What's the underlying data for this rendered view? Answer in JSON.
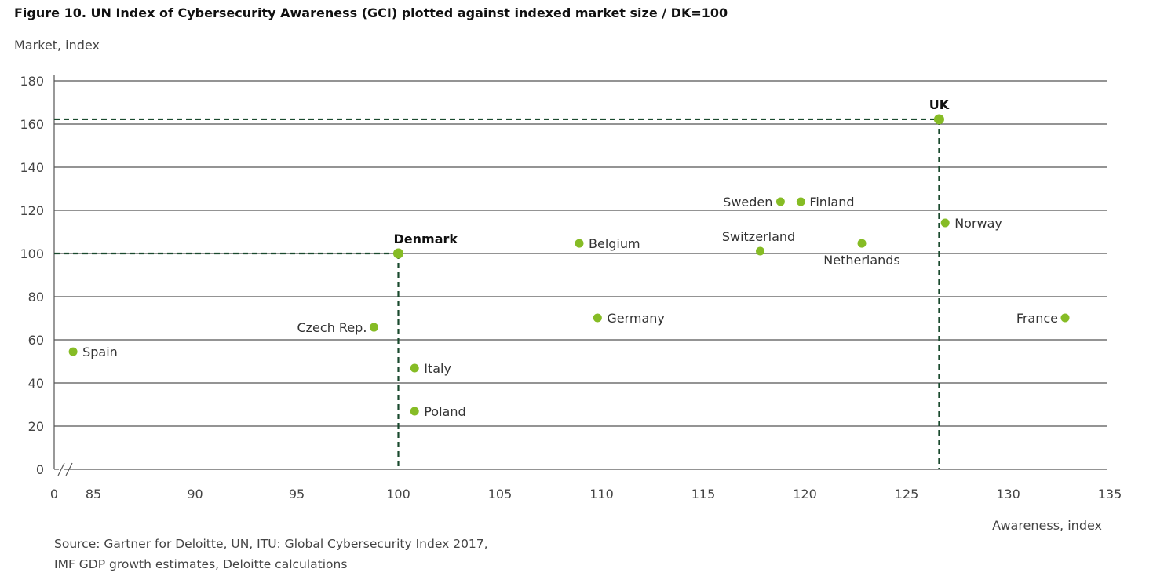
{
  "title": "Figure 10. UN Index of Cybersecurity Awareness (GCI) plotted against indexed market size / DK=100",
  "source_lines": [
    "Source: Gartner for Deloitte, UN, ITU: Global Cybersecurity Index 2017,",
    "IMF GDP growth estimates, Deloitte calculations"
  ],
  "colors": {
    "point": "#86bc25",
    "reference_line": "#1a4a2e",
    "grid": "#555555",
    "text": "#333333"
  },
  "chart_data": {
    "type": "scatter",
    "title": "Figure 10. UN Index of Cybersecurity Awareness (GCI) plotted against indexed market size / DK=100",
    "xlabel": "Awareness, index",
    "ylabel": "Market, index",
    "xlim": [
      85,
      135
    ],
    "ylim": [
      0,
      180
    ],
    "x_axis_break": true,
    "x_ticks": [
      "0",
      "85",
      "90",
      "95",
      "100",
      "105",
      "110",
      "115",
      "120",
      "125",
      "130",
      "135"
    ],
    "y_ticks": [
      "0",
      "20",
      "40",
      "60",
      "80",
      "100",
      "120",
      "140",
      "160",
      "180"
    ],
    "grid": "horizontal",
    "points": [
      {
        "name": "Spain",
        "x": 84.0,
        "y": 54.5,
        "label_side": "right",
        "bold": false
      },
      {
        "name": "Czech Rep.",
        "x": 98.8,
        "y": 65.8,
        "label_side": "left",
        "bold": false
      },
      {
        "name": "Denmark",
        "x": 100.0,
        "y": 100.0,
        "label_side": "top",
        "bold": true
      },
      {
        "name": "Italy",
        "x": 100.8,
        "y": 46.9,
        "label_side": "right",
        "bold": false
      },
      {
        "name": "Poland",
        "x": 100.8,
        "y": 26.9,
        "label_side": "right",
        "bold": false
      },
      {
        "name": "Belgium",
        "x": 108.9,
        "y": 104.7,
        "label_side": "right",
        "bold": false
      },
      {
        "name": "Germany",
        "x": 109.8,
        "y": 70.2,
        "label_side": "right",
        "bold": false
      },
      {
        "name": "Switzerland",
        "x": 117.8,
        "y": 101.1,
        "label_side": "top",
        "bold": false
      },
      {
        "name": "Sweden",
        "x": 118.8,
        "y": 124.0,
        "label_side": "left",
        "bold": false
      },
      {
        "name": "Finland",
        "x": 119.8,
        "y": 124.0,
        "label_side": "right",
        "bold": false
      },
      {
        "name": "Netherlands",
        "x": 122.8,
        "y": 104.7,
        "label_side": "bottom",
        "bold": false
      },
      {
        "name": "UK",
        "x": 126.6,
        "y": 162.2,
        "label_side": "top",
        "bold": true
      },
      {
        "name": "Norway",
        "x": 126.9,
        "y": 114.2,
        "label_side": "right",
        "bold": false
      },
      {
        "name": "France",
        "x": 132.8,
        "y": 70.2,
        "label_side": "left",
        "bold": false
      }
    ],
    "reference_lines": [
      {
        "name": "Denmark",
        "x": 100.0,
        "y": 100.0
      },
      {
        "name": "UK",
        "x": 126.6,
        "y": 162.2
      }
    ]
  }
}
